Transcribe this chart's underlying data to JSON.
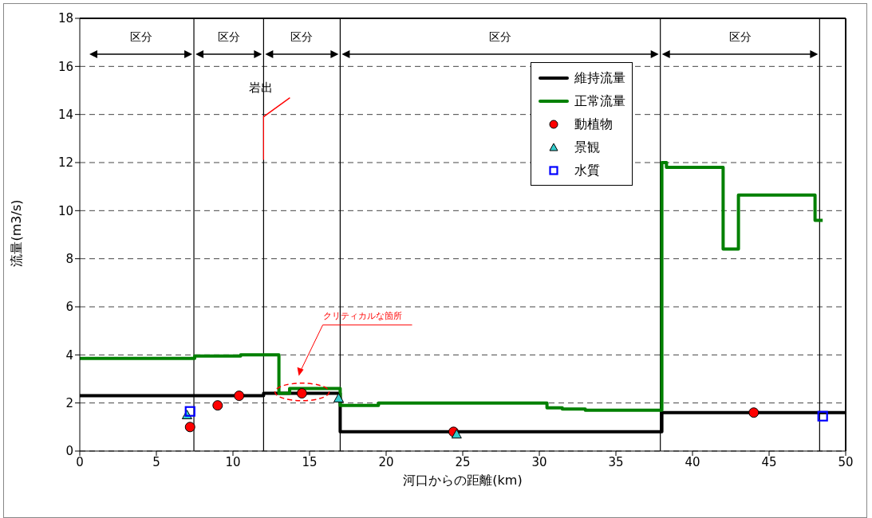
{
  "chart_data": {
    "type": "step",
    "xlabel": "河口からの距離(km)",
    "ylabel": "流量(m3/s)",
    "xlim": [
      0,
      50
    ],
    "xticks": [
      0,
      5,
      10,
      15,
      20,
      25,
      30,
      35,
      40,
      45,
      50
    ],
    "ylim": [
      0,
      18
    ],
    "yticks": [
      0,
      2,
      4,
      6,
      8,
      10,
      12,
      14,
      16,
      18
    ],
    "grid": "y",
    "legend": "top right",
    "series": [
      {
        "name": "維持流量",
        "color": "#000000",
        "x": [
          0,
          12,
          17,
          38,
          50
        ],
        "values": [
          2.3,
          2.4,
          0.8,
          1.6,
          1.6
        ]
      },
      {
        "name": "正常流量",
        "color": "#008000",
        "x": [
          0,
          7.5,
          10.5,
          13,
          13.7,
          17,
          19.5,
          30.5,
          31.5,
          33,
          36,
          38,
          38.3,
          42,
          43,
          48,
          48.5
        ],
        "values": [
          3.85,
          3.95,
          4.0,
          2.4,
          2.6,
          1.9,
          2.0,
          1.8,
          1.75,
          1.7,
          1.7,
          12.0,
          11.8,
          8.4,
          10.65,
          9.6,
          9.6
        ]
      },
      {
        "name": "動植物",
        "type": "scatter",
        "marker": "circle",
        "color": "#ff0000",
        "x": [
          7.2,
          9.0,
          10.4,
          14.5,
          24.4,
          44
        ],
        "values": [
          1.0,
          1.9,
          2.3,
          2.4,
          0.8,
          1.6
        ]
      },
      {
        "name": "景観",
        "type": "scatter",
        "marker": "triangle",
        "color": "#33cccc",
        "x": [
          7.0,
          16.9,
          24.6
        ],
        "values": [
          1.5,
          2.2,
          0.7
        ]
      },
      {
        "name": "水質",
        "type": "scatter",
        "marker": "square",
        "color": "#0000ff",
        "x": [
          7.2,
          48.5
        ],
        "values": [
          1.65,
          1.45
        ]
      }
    ],
    "ref_lines": [
      {
        "axis": "x",
        "value": 7.45,
        "color": "#000000"
      },
      {
        "axis": "x",
        "value": 12,
        "color": "#000000"
      },
      {
        "axis": "x",
        "value": 17,
        "color": "#000000"
      },
      {
        "axis": "x",
        "value": 37.9,
        "color": "#000000"
      },
      {
        "axis": "x",
        "value": 48.3,
        "color": "#000000"
      }
    ],
    "annotations": [
      "区分",
      "区分",
      "区分",
      "区分",
      "区分",
      "岩出",
      "クリティカルな箇所"
    ]
  }
}
